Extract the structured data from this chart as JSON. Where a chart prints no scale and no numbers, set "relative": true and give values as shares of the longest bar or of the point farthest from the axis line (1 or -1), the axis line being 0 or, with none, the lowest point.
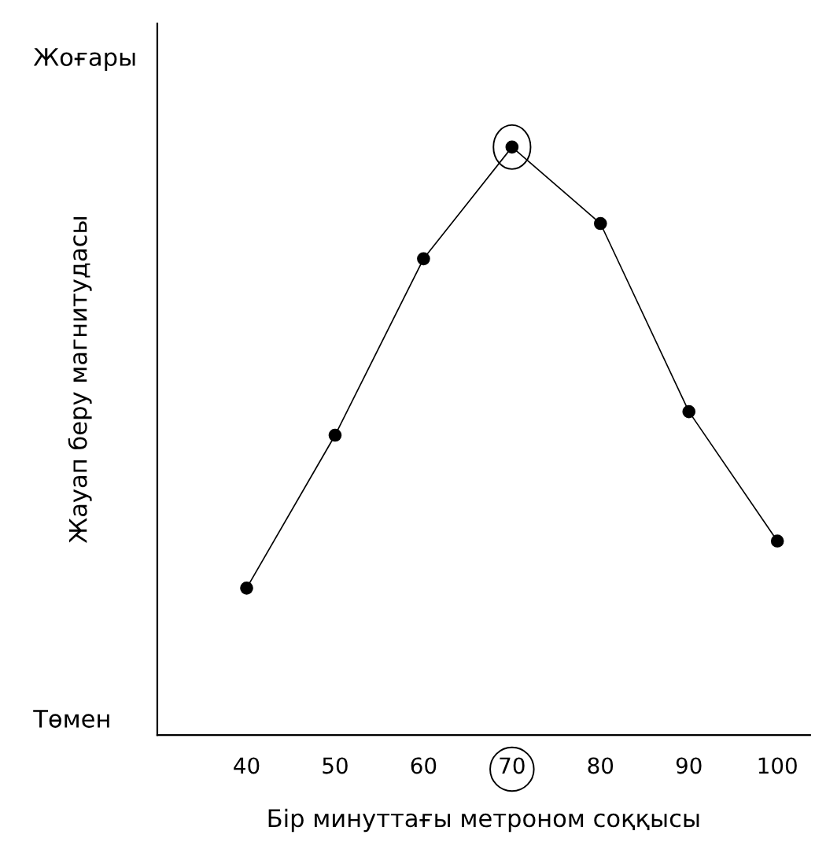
{
  "chart_data": {
    "type": "line",
    "relative": true,
    "xlabel": "Бір минуттағы метроном соққысы",
    "ylabel": "Жауап беру магнитудасы",
    "annotations": [
      "Жоғары",
      "Төмен"
    ],
    "categories": [
      "40",
      "50",
      "60",
      "70",
      "80",
      "90",
      "100"
    ],
    "series": [
      {
        "color": "#000000",
        "values": [
          0.25,
          0.51,
          0.81,
          1,
          0.87,
          0.55,
          0.33
        ]
      }
    ],
    "marker": "circle",
    "line_style": "solid",
    "grid": false,
    "legend": false
  }
}
